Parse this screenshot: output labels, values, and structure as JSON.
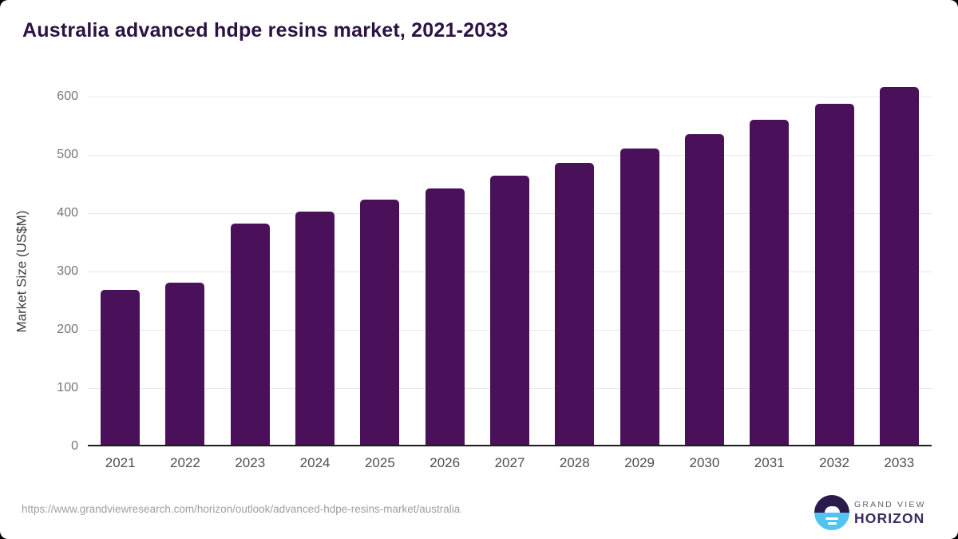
{
  "title": "Australia advanced hdpe resins market, 2021-2033",
  "chart_data": {
    "type": "bar",
    "title": "Australia advanced hdpe resins market, 2021-2033",
    "categories": [
      "2021",
      "2022",
      "2023",
      "2024",
      "2025",
      "2026",
      "2027",
      "2028",
      "2029",
      "2030",
      "2031",
      "2032",
      "2033"
    ],
    "values": [
      266,
      278,
      380,
      400,
      420,
      440,
      461,
      483,
      508,
      533,
      558,
      585,
      614
    ],
    "xlabel": "",
    "ylabel": "Market Size (US$M)",
    "ylim": [
      0,
      600
    ],
    "yticks": [
      0,
      100,
      200,
      300,
      400,
      500,
      600
    ],
    "grid": "horizontal",
    "legend": "none",
    "bar_color": "#4A1059"
  },
  "colors": {
    "title": "#2C1243",
    "bar": "#4A1059",
    "gridline": "#e8e8e8",
    "axis_line": "#1b1b1b",
    "x_tick": "#4f4f4f",
    "y_tick": "#757575",
    "url_text": "#9e9e9e",
    "logo_dark": "#2B1B4D",
    "logo_blue": "#55C3F0",
    "logo_purple": "#3A2960"
  },
  "footer": {
    "source_url": "https://www.grandviewresearch.com/horizon/outlook/advanced-hdpe-resins-market/australia",
    "logo": {
      "top_text": "GRAND VIEW",
      "bottom_text": "HORIZON"
    }
  }
}
